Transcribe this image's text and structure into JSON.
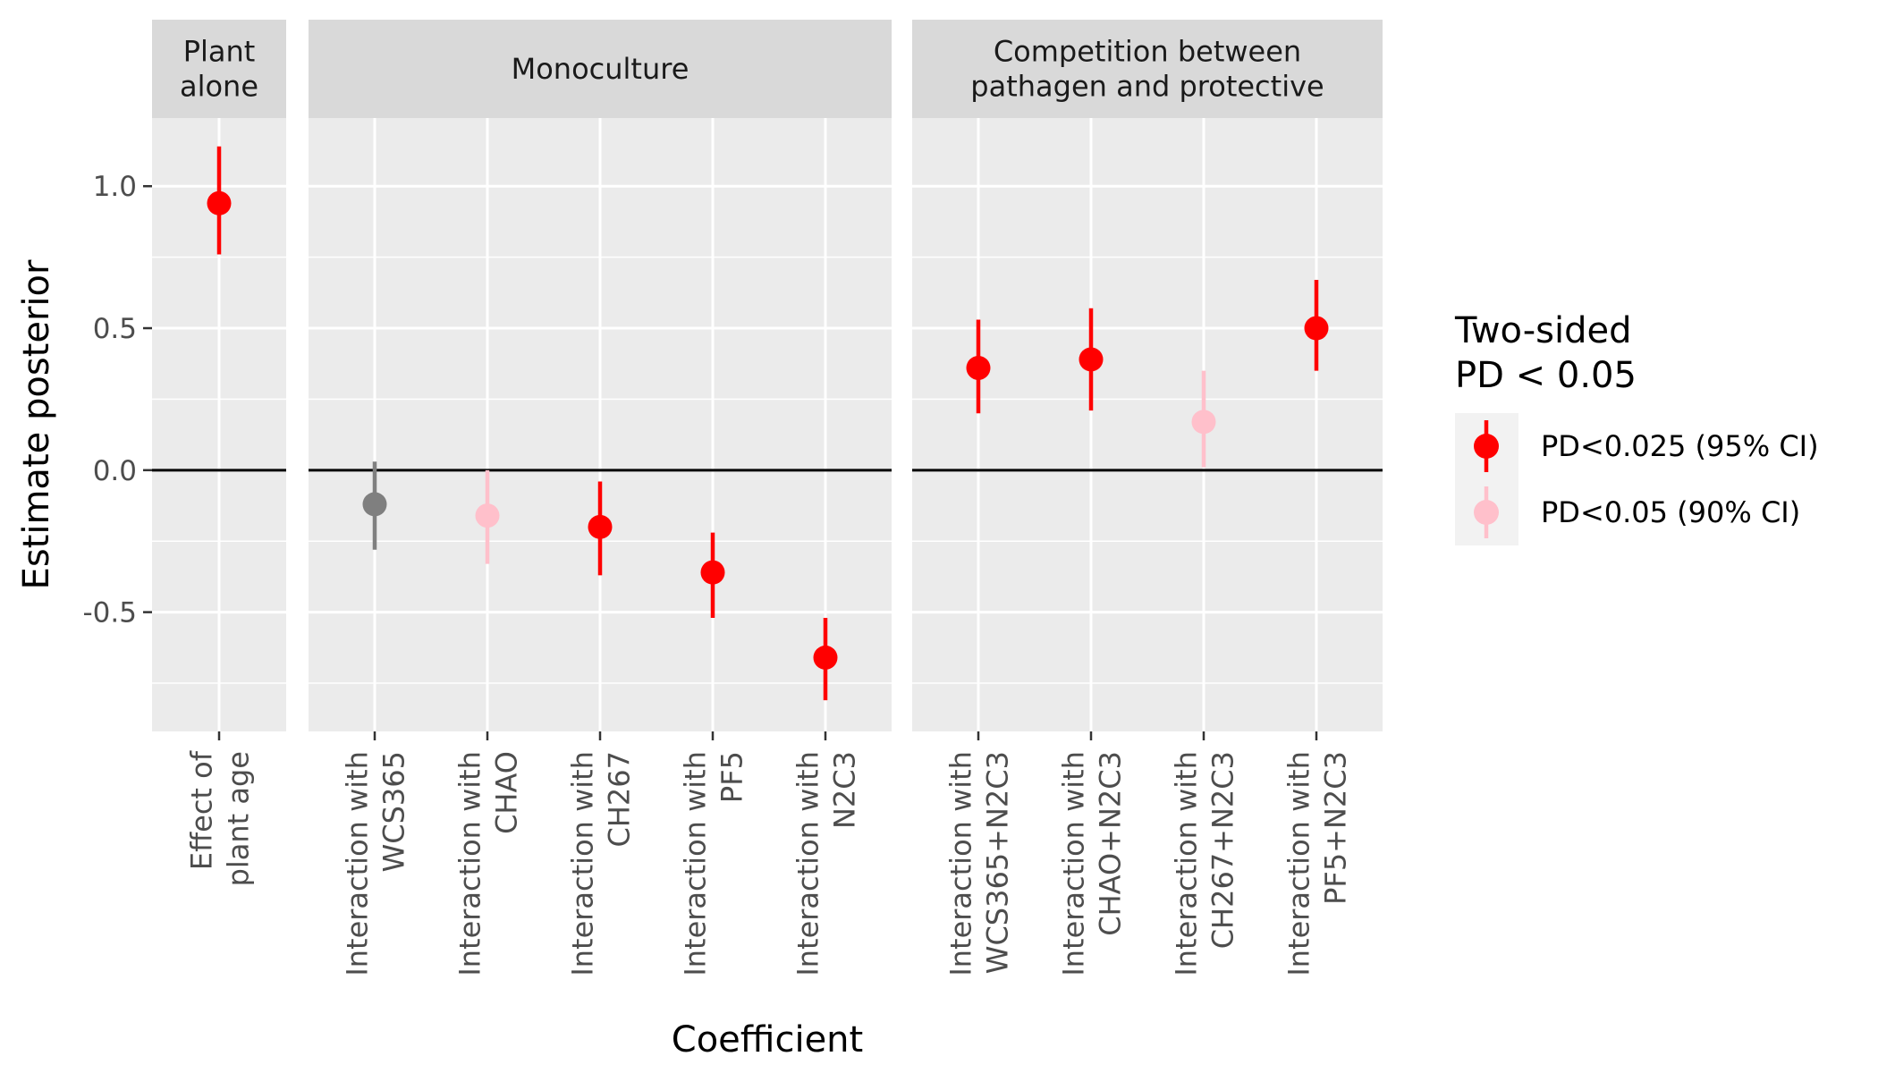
{
  "chart_data": {
    "type": "scatter",
    "subtype": "point-range (estimate with credible interval), faceted",
    "xlabel": "Coefficient",
    "ylabel": "Estimate posterior",
    "ylim": [
      -0.92,
      1.24
    ],
    "yticks": [
      "1.0",
      "0.5",
      "0.0",
      "-0.5"
    ],
    "ytick_values": [
      1.0,
      0.5,
      0.0,
      -0.5
    ],
    "reference_line": 0,
    "grid": true,
    "legend": {
      "title_lines": [
        "Two-sided",
        "PD < 0.05"
      ],
      "placement": "right",
      "entries": [
        {
          "label": "PD<0.025 (95% CI)",
          "color": "#ff0000"
        },
        {
          "label": "PD<0.05 (90% CI)",
          "color": "#ffc0cb"
        }
      ]
    },
    "colors": {
      "sig95": "#ff0000",
      "sig90": "#ffc0cb",
      "ns": "#7f7f7f"
    },
    "panels": [
      {
        "strip_lines": [
          "Plant",
          "alone"
        ],
        "points": [
          {
            "label_lines": [
              "Effect of",
              "plant age"
            ],
            "estimate": 0.94,
            "lower": 0.76,
            "upper": 1.14,
            "color": "#ff0000"
          }
        ]
      },
      {
        "strip_lines": [
          "Monoculture"
        ],
        "points": [
          {
            "label_lines": [
              "Interaction with",
              "WCS365"
            ],
            "estimate": -0.12,
            "lower": -0.28,
            "upper": 0.03,
            "color": "#7f7f7f"
          },
          {
            "label_lines": [
              "Interaction with",
              "CHAO"
            ],
            "estimate": -0.16,
            "lower": -0.33,
            "upper": 0.0,
            "color": "#ffc0cb"
          },
          {
            "label_lines": [
              "Interaction with",
              "CH267"
            ],
            "estimate": -0.2,
            "lower": -0.37,
            "upper": -0.04,
            "color": "#ff0000"
          },
          {
            "label_lines": [
              "Interaction with",
              "PF5"
            ],
            "estimate": -0.36,
            "lower": -0.52,
            "upper": -0.22,
            "color": "#ff0000"
          },
          {
            "label_lines": [
              "Interaction with",
              "N2C3"
            ],
            "estimate": -0.66,
            "lower": -0.81,
            "upper": -0.52,
            "color": "#ff0000"
          }
        ]
      },
      {
        "strip_lines": [
          "Competition between",
          "pathagen and protective"
        ],
        "points": [
          {
            "label_lines": [
              "Interaction with",
              "WCS365+N2C3"
            ],
            "estimate": 0.36,
            "lower": 0.2,
            "upper": 0.53,
            "color": "#ff0000"
          },
          {
            "label_lines": [
              "Interaction with",
              "CHAO+N2C3"
            ],
            "estimate": 0.39,
            "lower": 0.21,
            "upper": 0.57,
            "color": "#ff0000"
          },
          {
            "label_lines": [
              "Interaction with",
              "CH267+N2C3"
            ],
            "estimate": 0.17,
            "lower": 0.01,
            "upper": 0.35,
            "color": "#ffc0cb"
          },
          {
            "label_lines": [
              "Interaction with",
              "PF5+N2C3"
            ],
            "estimate": 0.5,
            "lower": 0.35,
            "upper": 0.67,
            "color": "#ff0000"
          }
        ]
      }
    ]
  }
}
